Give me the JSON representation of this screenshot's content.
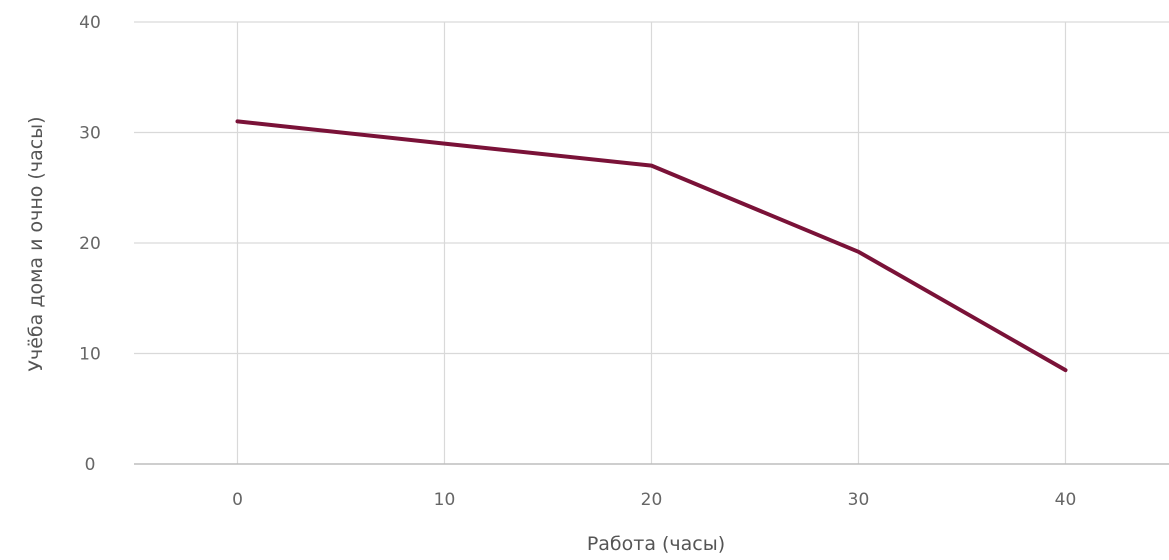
{
  "chart_data": {
    "type": "line",
    "title": "",
    "xlabel": "Работа (часы)",
    "ylabel": "Учёба дома и очно (часы)",
    "x": [
      0,
      10,
      20,
      30,
      40
    ],
    "x_ticks": [
      "0",
      "10",
      "20",
      "30",
      "40"
    ],
    "y_ticks": [
      "0",
      "10",
      "20",
      "30",
      "40"
    ],
    "xlim": [
      -5,
      45
    ],
    "ylim": [
      0,
      40
    ],
    "grid": true,
    "series": [
      {
        "values": [
          31,
          29,
          27,
          19.2,
          8.5
        ],
        "color": "#7a1238"
      }
    ]
  }
}
